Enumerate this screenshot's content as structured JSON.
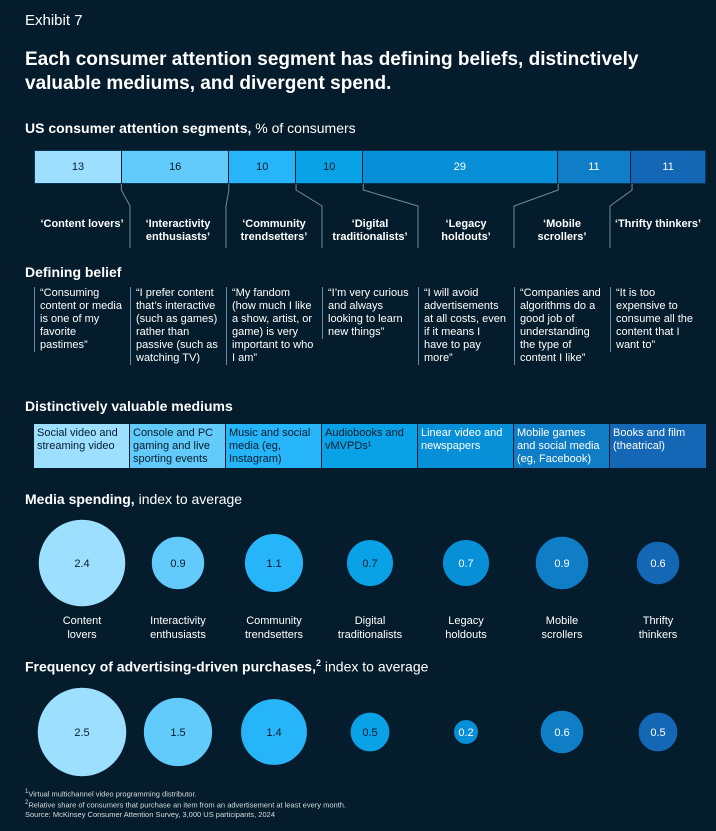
{
  "exhibit_label": "Exhibit 7",
  "title": "Each consumer attention segment has defining beliefs, distinctively valuable mediums, and divergent spend.",
  "segments_heading": {
    "bold": "US consumer attention segments,",
    "rest": " % of consumers"
  },
  "segments": [
    {
      "name": "‘Content lovers’",
      "share": "13",
      "color": "#9ddfff"
    },
    {
      "name": "‘Interactivity enthusiasts’",
      "share": "16",
      "color": "#63cbfb"
    },
    {
      "name": "‘Community trendsetters’",
      "share": "10",
      "color": "#25b5f8"
    },
    {
      "name": "‘Digital traditionalists’",
      "share": "10",
      "color": "#0aa2e6"
    },
    {
      "name": "‘Legacy holdouts’",
      "share": "29",
      "color": "#078fd8"
    },
    {
      "name": "‘Mobile scrollers’",
      "share": "11",
      "color": "#0f7ec7"
    },
    {
      "name": "‘Thrifty thinkers’",
      "share": "11",
      "color": "#1467b4"
    }
  ],
  "belief_heading": "Defining belief",
  "beliefs": [
    "“Consuming content or media is one of my favorite pastimes”",
    "“I prefer content that’s interactive (such as games) rather than passive (such as watching TV)",
    "“My fandom (how much I like a show, artist, or game) is very important to who I am”",
    "“I’m very curious and always looking to learn new things”",
    "“I will avoid advertisements at all costs, even if it means I have to pay more”",
    "“Companies and algorithms do a good job of understanding the type of content I like”",
    "“It is too expensive to consume all the content that I want to”"
  ],
  "mediums_heading": "Distinctively valuable mediums",
  "mediums": [
    {
      "text": "Social video and streaming video",
      "color": "#9ddfff",
      "text_color": "#051c2c"
    },
    {
      "text": "Console and PC gaming and live sporting events",
      "color": "#63cbfb",
      "text_color": "#051c2c"
    },
    {
      "text": "Music and social media (eg, Instagram)",
      "color": "#25b5f8",
      "text_color": "#051c2c"
    },
    {
      "text": "Audiobooks and vMVPDs¹",
      "color": "#0aa2e6",
      "text_color": "#051c2c"
    },
    {
      "text": "Linear video and newspapers",
      "color": "#078fd8",
      "text_color": "#ffffff"
    },
    {
      "text": "Mobile games and social media (eg, Facebook)",
      "color": "#0f7ec7",
      "text_color": "#ffffff"
    },
    {
      "text": "Books and film (theatrical)",
      "color": "#1467b4",
      "text_color": "#ffffff"
    }
  ],
  "spending_heading": {
    "bold": "Media spending,",
    "rest": " index to average"
  },
  "frequency_heading": {
    "bold": "Frequency of advertising-driven purchases,",
    "sup": "2",
    "rest": " index to average"
  },
  "bubble_labels": [
    [
      "Content",
      "lovers"
    ],
    [
      "Interactivity",
      "enthusiasts"
    ],
    [
      "Community",
      "trendsetters"
    ],
    [
      "Digital",
      "traditionalists"
    ],
    [
      "Legacy",
      "holdouts"
    ],
    [
      "Mobile",
      "scrollers"
    ],
    [
      "Thrifty",
      "thinkers"
    ]
  ],
  "chart_data": [
    {
      "type": "bar",
      "title": "US consumer attention segments, % of consumers",
      "categories": [
        "Content lovers",
        "Interactivity enthusiasts",
        "Community trendsetters",
        "Digital traditionalists",
        "Legacy holdouts",
        "Mobile scrollers",
        "Thrifty thinkers"
      ],
      "values": [
        13,
        16,
        10,
        10,
        29,
        11,
        11
      ]
    },
    {
      "type": "scatter",
      "title": "Media spending, index to average",
      "categories": [
        "Content lovers",
        "Interactivity enthusiasts",
        "Community trendsetters",
        "Digital traditionalists",
        "Legacy holdouts",
        "Mobile scrollers",
        "Thrifty thinkers"
      ],
      "values": [
        2.4,
        0.9,
        1.1,
        0.7,
        0.7,
        0.9,
        0.6
      ],
      "labels": [
        "2.4",
        "0.9",
        "1.1",
        "0.7",
        "0.7",
        "0.9",
        "0.6"
      ]
    },
    {
      "type": "scatter",
      "title": "Frequency of advertising-driven purchases, index to average",
      "categories": [
        "Content lovers",
        "Interactivity enthusiasts",
        "Community trendsetters",
        "Digital traditionalists",
        "Legacy holdouts",
        "Mobile scrollers",
        "Thrifty thinkers"
      ],
      "values": [
        2.5,
        1.5,
        1.4,
        0.5,
        0.2,
        0.6,
        0.5
      ],
      "labels": [
        "2.5",
        "1.5",
        "1.4",
        "0.5",
        "0.2",
        "0.6",
        "0.5"
      ]
    }
  ],
  "footnotes": {
    "note1_sup": "1",
    "note1": "Virtual multichannel video programming distributor.",
    "note2_sup": "2",
    "note2": "Relative share of consumers that purchase an item from an advertisement at least every month.",
    "source": "Source: McKinsey Consumer Attention Survey, 3,000 US participants, 2024"
  }
}
